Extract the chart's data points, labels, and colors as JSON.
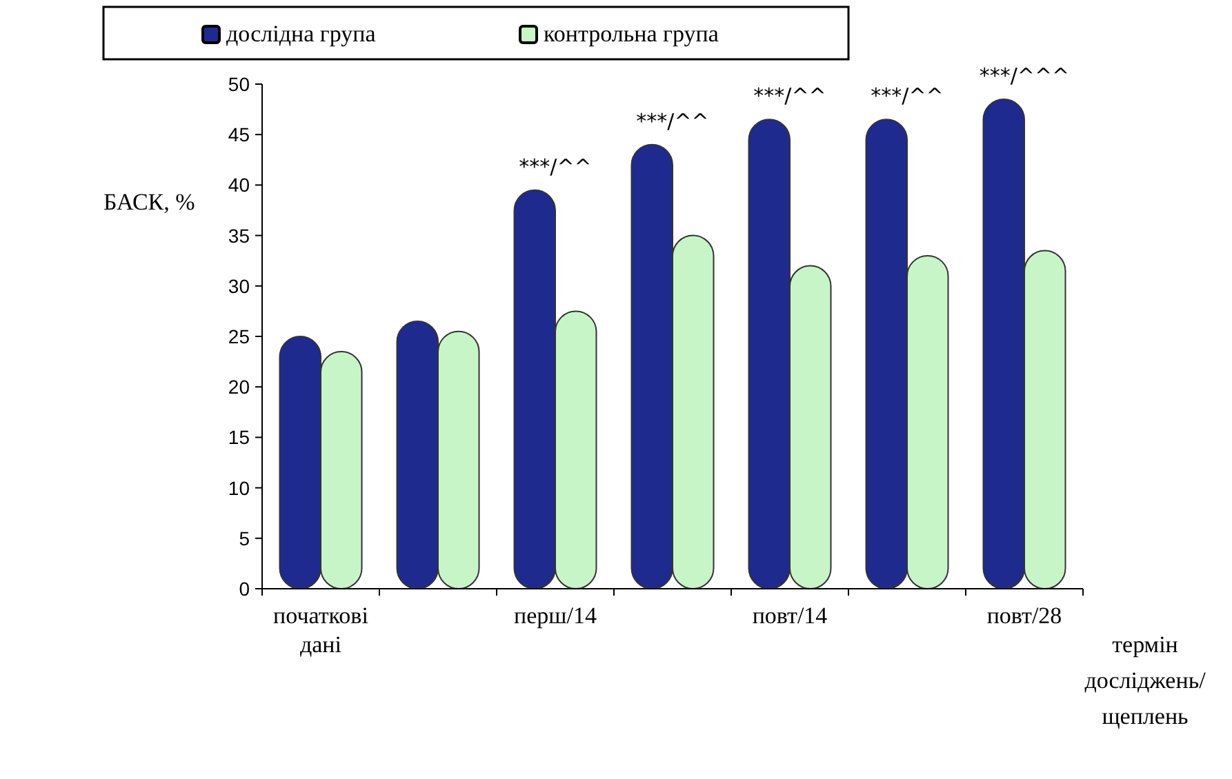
{
  "chart_data": {
    "type": "bar",
    "ylabel": "БАСК, %",
    "xlabel": "термін\nдосліджень/\nщеплень",
    "categories": [
      "початкові\nдані",
      null,
      "перш/14",
      null,
      "повт/14",
      null,
      "повт/28"
    ],
    "series": [
      {
        "name": "дослідна група",
        "color": "#1f2a8f",
        "values": [
          25,
          26.5,
          39.5,
          44,
          46.5,
          46.5,
          48.5
        ],
        "value_labels": [
          null,
          null,
          "***/^^",
          "***/^^",
          "***/^^",
          "***/^^",
          "***/^^^"
        ]
      },
      {
        "name": "контрольна група",
        "color": "#c8f5c8",
        "values": [
          23.5,
          25.5,
          27.5,
          35,
          32,
          33,
          33.5
        ]
      }
    ],
    "ylim": [
      0,
      50
    ],
    "yticks": [
      0,
      5,
      10,
      15,
      20,
      25,
      30,
      35,
      40,
      45,
      50
    ],
    "grid": false,
    "legend": "top"
  }
}
